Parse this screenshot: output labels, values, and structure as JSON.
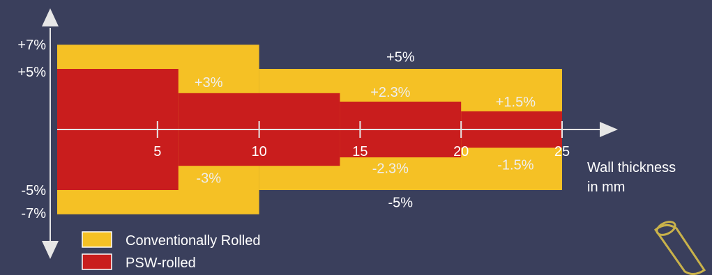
{
  "chart_data": {
    "type": "area",
    "x_unit_label": [
      "Wall thickness",
      "in mm"
    ],
    "x_ticks": [
      "5",
      "10",
      "15",
      "20",
      "25"
    ],
    "x_tick_values": [
      5,
      10,
      15,
      20,
      25
    ],
    "xlim": [
      0,
      25
    ],
    "y_ticks": [
      "+7%",
      "+5%",
      "-5%",
      "-7%"
    ],
    "ylim": [
      -7,
      7
    ],
    "series": [
      {
        "name": "Conventionally Rolled",
        "color": "#f5c125",
        "steps": [
          {
            "x0": 0,
            "x1": 10,
            "upper": 7,
            "lower": -7
          },
          {
            "x0": 10,
            "x1": 25,
            "upper": 5,
            "lower": -5
          }
        ],
        "labels": [
          {
            "text": "+5%",
            "x": 17,
            "y": 6.0
          },
          {
            "text": "-5%",
            "x": 17,
            "y": -6.0
          }
        ]
      },
      {
        "name": "PSW-rolled",
        "color": "#c91d1d",
        "steps": [
          {
            "x0": 0,
            "x1": 6,
            "upper": 5,
            "lower": -5
          },
          {
            "x0": 6,
            "x1": 14,
            "upper": 3,
            "lower": -3
          },
          {
            "x0": 14,
            "x1": 20,
            "upper": 2.3,
            "lower": -2.3
          },
          {
            "x0": 20,
            "x1": 25,
            "upper": 1.5,
            "lower": -1.5
          }
        ],
        "labels": [
          {
            "text": "+3%",
            "x": 7.5,
            "y": 3.9
          },
          {
            "text": "-3%",
            "x": 7.5,
            "y": -4.0
          },
          {
            "text": "+2.3%",
            "x": 16.5,
            "y": 3.1
          },
          {
            "text": "-2.3%",
            "x": 16.5,
            "y": -3.2
          },
          {
            "text": "+1.5%",
            "x": 22.7,
            "y": 2.3
          },
          {
            "text": "-1.5%",
            "x": 22.7,
            "y": -2.9
          }
        ]
      }
    ],
    "legend": [
      {
        "label": "Conventionally Rolled",
        "color": "#f5c125"
      },
      {
        "label": "PSW-rolled",
        "color": "#c91d1d"
      }
    ]
  }
}
